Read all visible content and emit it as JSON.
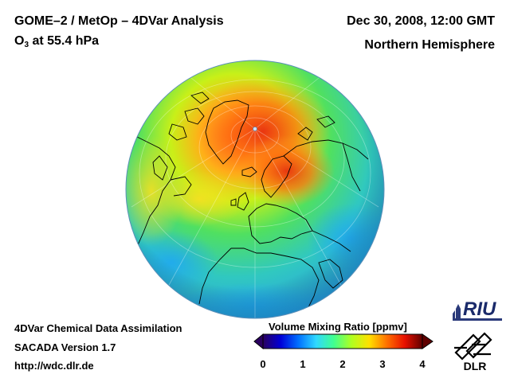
{
  "header": {
    "title_line1": "GOME–2 / MetOp – 4DVar Analysis",
    "species": "O",
    "species_sub": "3",
    "level_text": " at 55.4 hPa",
    "date": "Dec 30, 2008, 12:00 GMT",
    "hemisphere": "Northern Hemisphere"
  },
  "footer": {
    "line1": "4DVar Chemical Data Assimilation",
    "line2": "SACADA Version 1.7",
    "url": "http://wdc.dlr.de"
  },
  "colorbar": {
    "title": "Volume Mixing Ratio [ppmv]",
    "ticks": [
      "0",
      "1",
      "2",
      "3",
      "4"
    ],
    "range": [
      0,
      4
    ],
    "colors": [
      "#2a0060",
      "#0000d8",
      "#0070ff",
      "#30d8ff",
      "#40ff90",
      "#b0ff20",
      "#ffe000",
      "#ff7000",
      "#e81000",
      "#600000"
    ]
  },
  "logos": {
    "riu": "RIU",
    "dlr": "DLR"
  },
  "map": {
    "projection": "orthographic",
    "view": "north-polar",
    "ozone_max_region": "Arctic / North Atlantic",
    "ozone_colors": {
      "low": "#30b8f0",
      "mid": "#40e060",
      "high": "#ff6020"
    }
  }
}
